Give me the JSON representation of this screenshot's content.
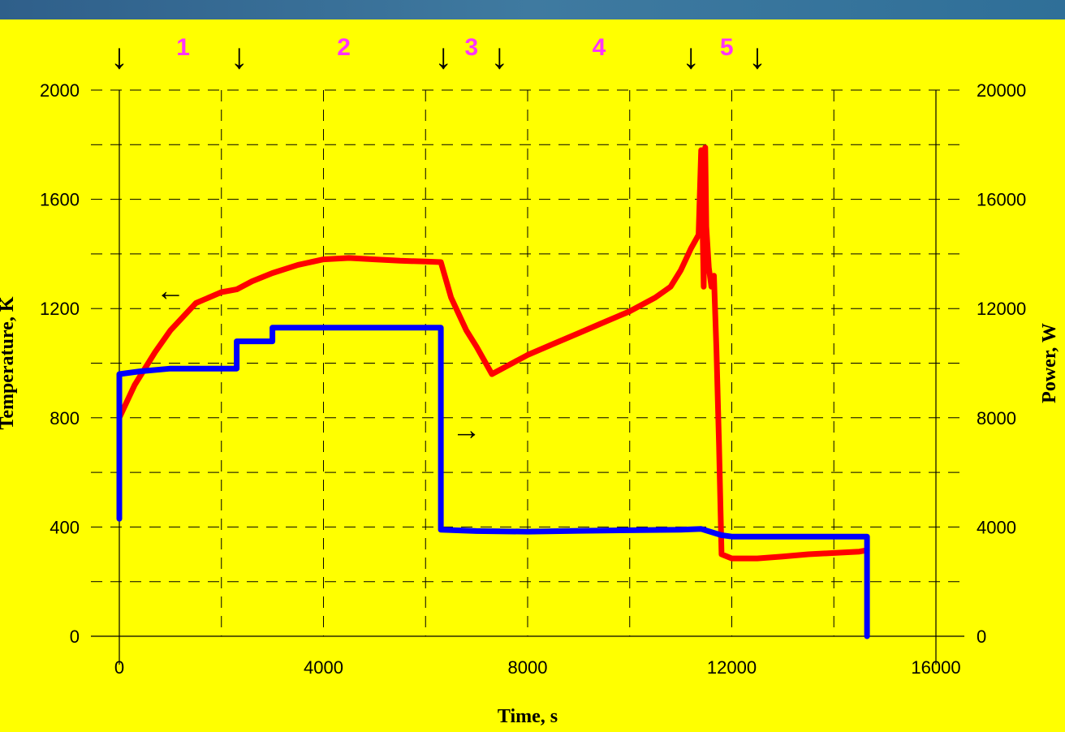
{
  "chart_data": {
    "type": "line",
    "xlabel": "Time, s",
    "ylabel_left": "Temperature, K",
    "ylabel_right": "Power, W",
    "xlim": [
      0,
      16000
    ],
    "ylim_left": [
      0,
      2000
    ],
    "ylim_right": [
      0,
      20000
    ],
    "x_ticks": [
      "0",
      "4000",
      "8000",
      "12000",
      "16000"
    ],
    "y_ticks_left": [
      "0",
      "400",
      "800",
      "1200",
      "1600",
      "2000"
    ],
    "y_ticks_right": [
      "0",
      "4000",
      "8000",
      "12000",
      "16000",
      "20000"
    ],
    "grid": true,
    "phase_labels": [
      {
        "text": "1",
        "x": 1250
      },
      {
        "text": "2",
        "x": 4400
      },
      {
        "text": "3",
        "x": 6900
      },
      {
        "text": "4",
        "x": 9400
      },
      {
        "text": "5",
        "x": 11900
      }
    ],
    "phase_markers_x": [
      0,
      2350,
      6350,
      7450,
      11200,
      12500
    ],
    "series": [
      {
        "axis": "left",
        "color": "#ff0000",
        "x": [
          0,
          300,
          700,
          1000,
          1500,
          2000,
          2300,
          2600,
          3000,
          3500,
          4000,
          4500,
          5000,
          5500,
          6000,
          6300,
          6500,
          6800,
          7000,
          7300,
          7600,
          8000,
          8500,
          9000,
          9500,
          10000,
          10500,
          10800,
          11000,
          11200,
          11350,
          11400,
          11450,
          11480,
          11500,
          11550,
          11600,
          11650,
          11700,
          11750,
          11800,
          12000,
          12500,
          13000,
          13500,
          14000,
          14500,
          14650
        ],
        "y": [
          800,
          920,
          1040,
          1120,
          1220,
          1260,
          1270,
          1300,
          1330,
          1360,
          1380,
          1385,
          1380,
          1375,
          1372,
          1370,
          1240,
          1120,
          1060,
          960,
          990,
          1030,
          1070,
          1110,
          1150,
          1190,
          1240,
          1280,
          1340,
          1420,
          1470,
          1780,
          1280,
          1790,
          1500,
          1350,
          1280,
          1320,
          1050,
          700,
          300,
          285,
          285,
          292,
          300,
          305,
          310,
          315
        ]
      },
      {
        "axis": "right",
        "color": "#0000ff",
        "x": [
          0,
          0,
          400,
          1000,
          2300,
          2300,
          3000,
          3000,
          4000,
          6300,
          6300,
          7000,
          8000,
          9000,
          10000,
          11000,
          11400,
          11800,
          12000,
          13000,
          14000,
          14650,
          14650
        ],
        "y": [
          4300,
          9600,
          9700,
          9800,
          9800,
          10800,
          10800,
          11300,
          11300,
          11300,
          3900,
          3850,
          3830,
          3860,
          3880,
          3900,
          3930,
          3700,
          3650,
          3650,
          3650,
          3650,
          0
        ]
      }
    ],
    "annotations": [
      {
        "text": "←",
        "x": 1000,
        "y": 1260,
        "axis": "left"
      },
      {
        "text": "→",
        "x": 6800,
        "y": 7500,
        "axis": "right"
      }
    ]
  }
}
